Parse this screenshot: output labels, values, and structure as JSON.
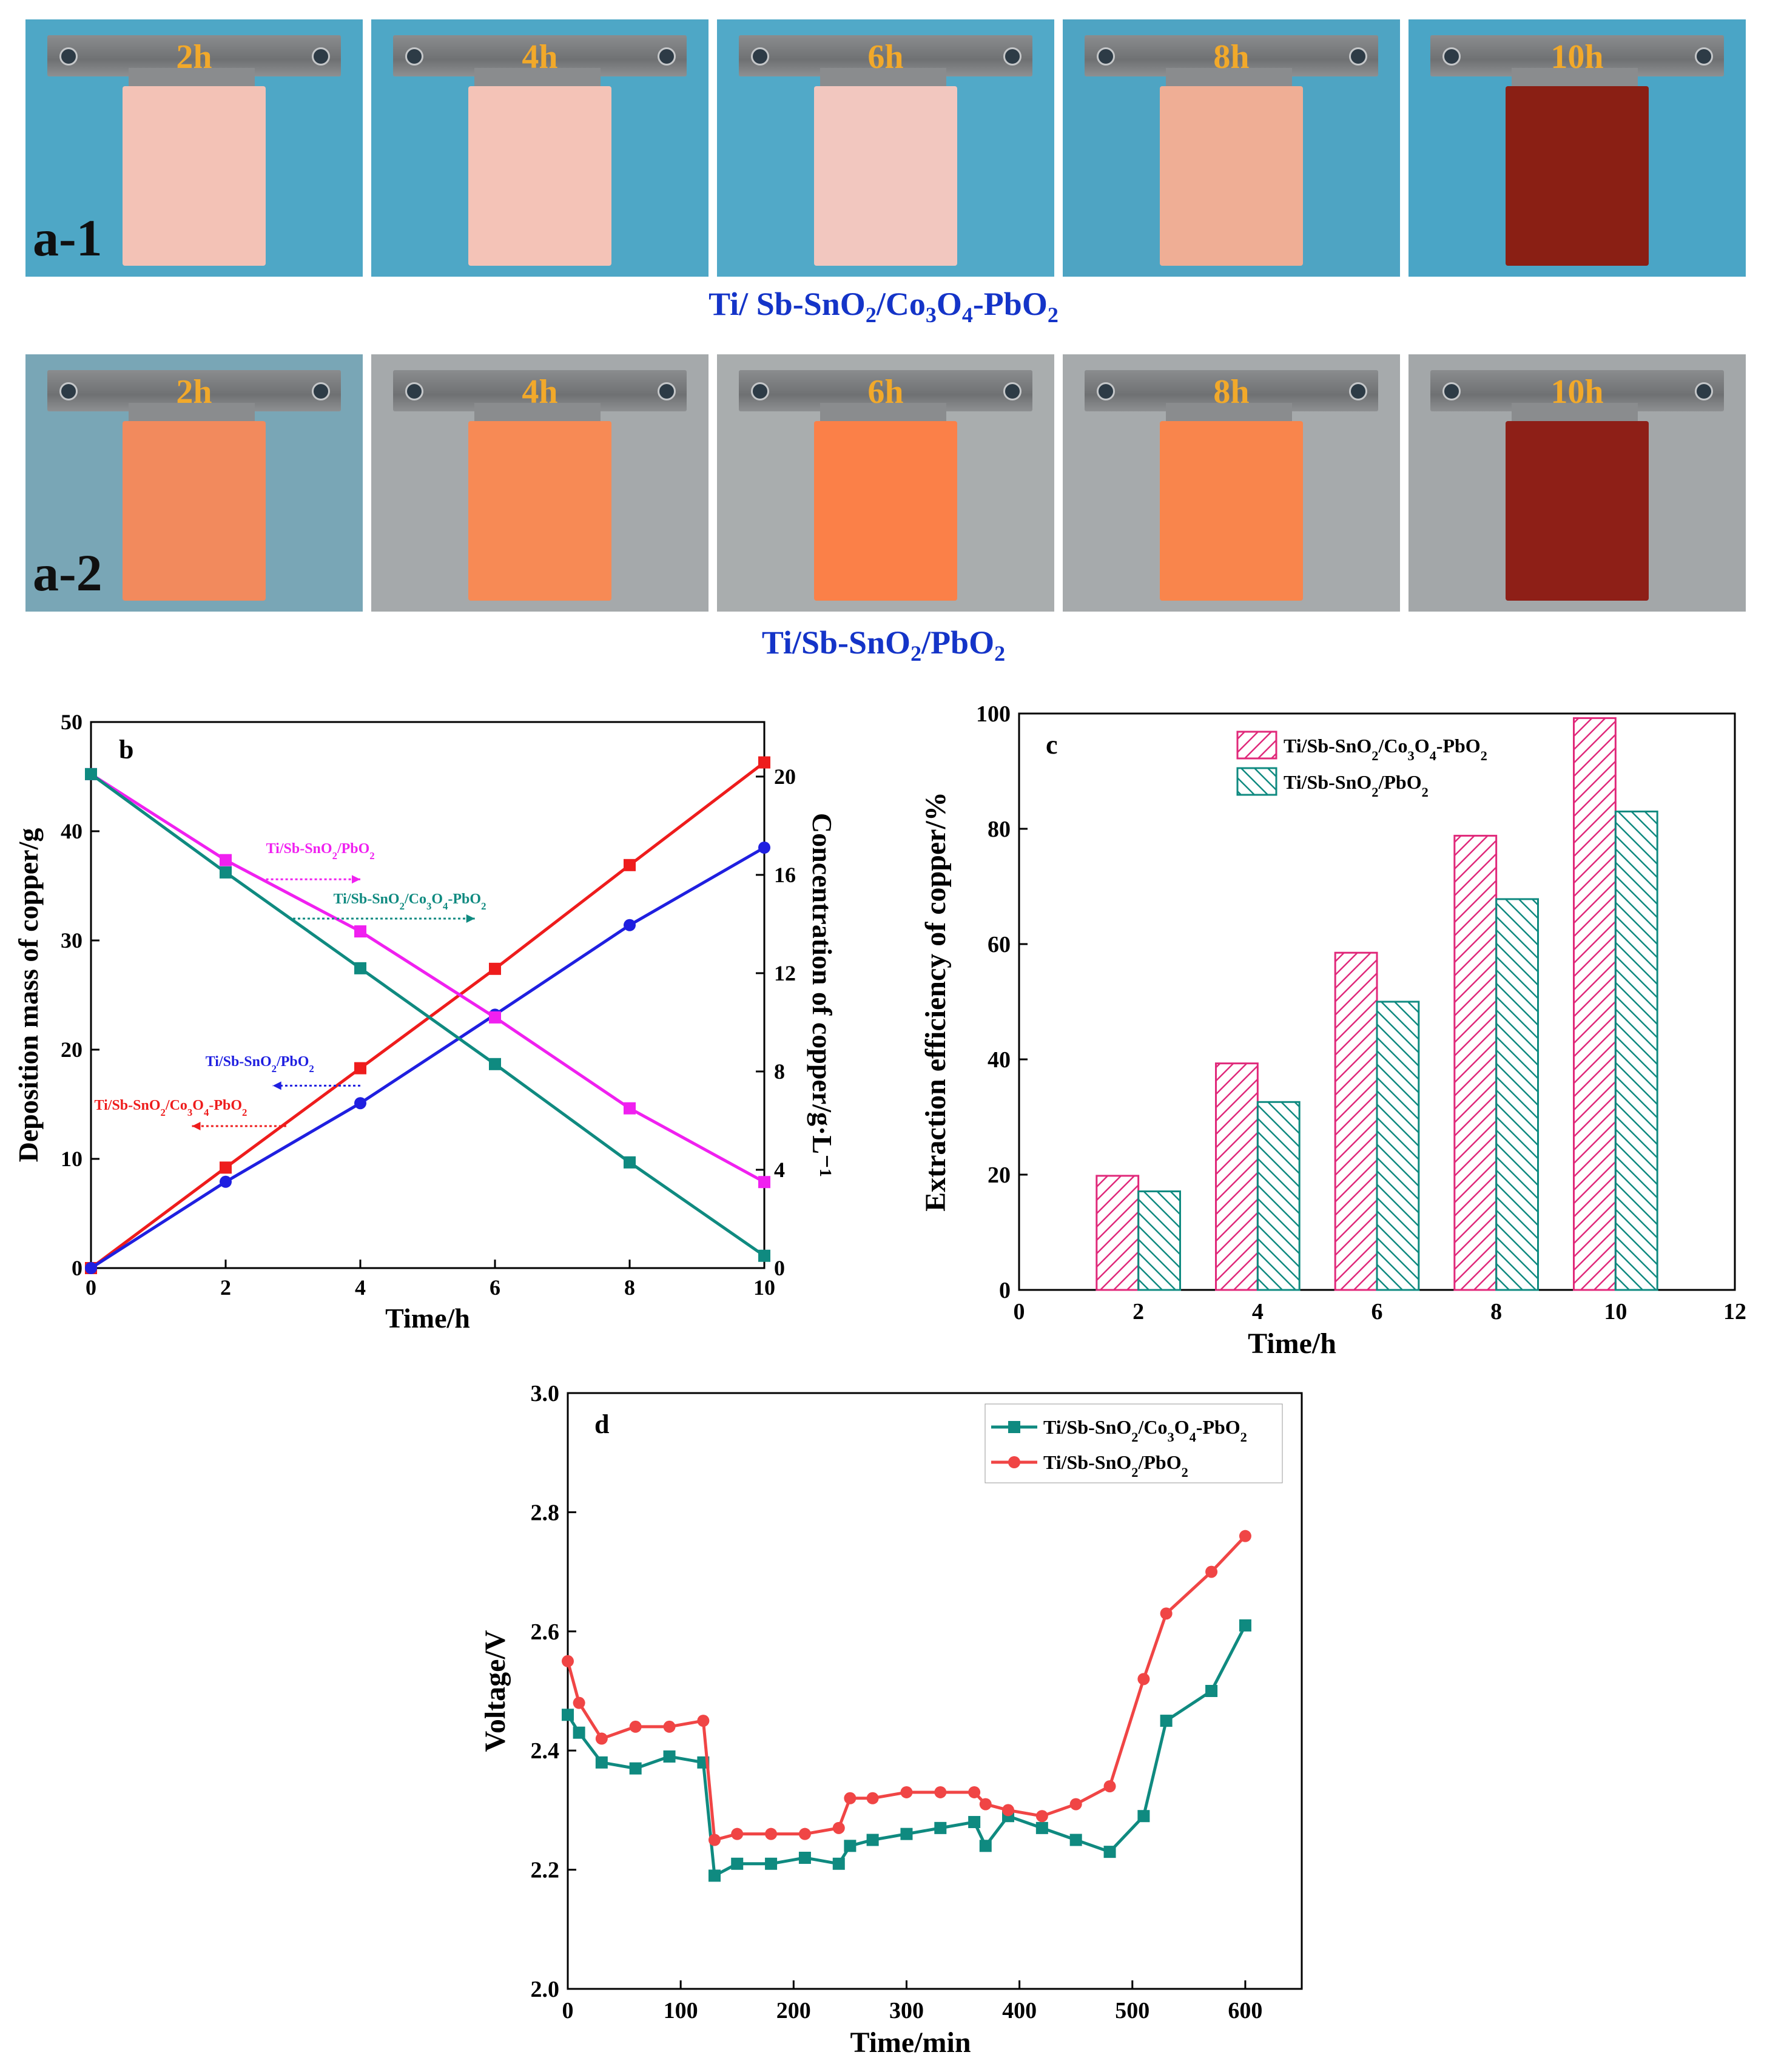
{
  "photos_row1": {
    "panel_label": "a-1",
    "caption_parts": [
      "Ti/ Sb-SnO",
      "2",
      "/Co",
      "3",
      "O",
      "4",
      "-PbO",
      "2"
    ],
    "items": [
      {
        "time": "2h",
        "bg": "#4ea7c6",
        "plate": "#f3c2b6"
      },
      {
        "time": "4h",
        "bg": "#4ea7c6",
        "plate": "#f4c3b7"
      },
      {
        "time": "6h",
        "bg": "#51a9c8",
        "plate": "#f2c7bf"
      },
      {
        "time": "8h",
        "bg": "#4ea4c3",
        "plate": "#efae95"
      },
      {
        "time": "10h",
        "bg": "#4aa5c6",
        "plate": "#8a1f14"
      }
    ]
  },
  "photos_row2": {
    "panel_label": "a-2",
    "caption_parts": [
      "Ti/Sb-SnO",
      "2",
      "/PbO",
      "2"
    ],
    "items": [
      {
        "time": "2h",
        "bg": "#79a6b6",
        "plate": "#f28a5d"
      },
      {
        "time": "4h",
        "bg": "#a5a9ab",
        "plate": "#f78a55"
      },
      {
        "time": "6h",
        "bg": "#a9adae",
        "plate": "#fb8048"
      },
      {
        "time": "8h",
        "bg": "#a6aaac",
        "plate": "#f9854c"
      },
      {
        "time": "10h",
        "bg": "#a3a7a9",
        "plate": "#8e1f17"
      }
    ]
  },
  "chart_data": [
    {
      "id": "b",
      "type": "line",
      "panel_label": "b",
      "xlabel": "Time/h",
      "ylabel": "Deposition mass of copper/g",
      "y2label": "Concentration of copper/g·L⁻¹",
      "xlim": [
        0,
        10
      ],
      "ylim": [
        0,
        50
      ],
      "y2lim": [
        0,
        22.22
      ],
      "xticks": [
        "0",
        "2",
        "4",
        "6",
        "8",
        "10"
      ],
      "yticks": [
        "0",
        "10",
        "20",
        "30",
        "40",
        "50"
      ],
      "y2ticks": [
        "0",
        "4",
        "8",
        "12",
        "16",
        "20"
      ],
      "series": [
        {
          "name": "Ti/Sb-SnO2/Co3O4-PbO2 (mass)",
          "axis": "left",
          "color": "#ee1c1c",
          "marker": "square",
          "x": [
            0,
            2,
            4,
            6,
            8,
            10
          ],
          "values": [
            0,
            9.2,
            18.3,
            27.4,
            36.9,
            46.3
          ]
        },
        {
          "name": "Ti/Sb-SnO2/PbO2 (mass)",
          "axis": "left",
          "color": "#1f1fe0",
          "marker": "circle",
          "x": [
            0,
            2,
            4,
            6,
            8,
            10
          ],
          "values": [
            0,
            7.9,
            15.1,
            23.2,
            31.4,
            38.5
          ]
        },
        {
          "name": "Ti/Sb-SnO2/PbO2 (concentration)",
          "axis": "right",
          "color": "#f020f0",
          "marker": "square",
          "x": [
            0,
            2,
            4,
            6,
            8,
            10
          ],
          "values": [
            20.1,
            16.6,
            13.7,
            10.2,
            6.5,
            3.5
          ]
        },
        {
          "name": "Ti/Sb-SnO2/Co3O4-PbO2 (concentration)",
          "axis": "right",
          "color": "#0f8a80",
          "marker": "square",
          "x": [
            0,
            2,
            4,
            6,
            8,
            10
          ],
          "values": [
            20.1,
            16.1,
            12.2,
            8.3,
            4.3,
            0.5
          ]
        }
      ],
      "annotations": [
        {
          "text": "Ti/Sb-SnO2/PbO2",
          "parts": [
            "Ti/Sb-SnO",
            "2",
            "/PbO",
            "2"
          ],
          "color": "#f020f0",
          "x": 2.6,
          "y": 38.0,
          "arrow": "right",
          "ax1": 2.6,
          "ax2": 4.0,
          "ay": 35.6
        },
        {
          "text": "Ti/Sb-SnO2/Co3O4-PbO2",
          "parts": [
            "Ti/Sb-SnO",
            "2",
            "/Co",
            "3",
            "O",
            "4",
            "-PbO",
            "2"
          ],
          "color": "#0f8a80",
          "x": 3.6,
          "y": 33.4,
          "arrow": "right",
          "ax1": 3.0,
          "ax2": 5.7,
          "ay": 32.0
        },
        {
          "text": "Ti/Sb-SnO2/PbO2",
          "parts": [
            "Ti/Sb-SnO",
            "2",
            "/PbO",
            "2"
          ],
          "color": "#1f1fe0",
          "x": 1.7,
          "y": 18.5,
          "arrow": "left",
          "ax1": 4.0,
          "ax2": 2.7,
          "ay": 16.7
        },
        {
          "text": "Ti/Sb-SnO2/Co3O4-PbO2",
          "parts": [
            "Ti/Sb-SnO",
            "2",
            "/Co",
            "3",
            "O",
            "4",
            "-PbO",
            "2"
          ],
          "color": "#ee1c1c",
          "x": 0.05,
          "y": 14.5,
          "arrow": "left",
          "ax1": 2.9,
          "ax2": 1.5,
          "ay": 13.0
        }
      ]
    },
    {
      "id": "c",
      "type": "bar",
      "panel_label": "c",
      "xlabel": "Time/h",
      "ylabel": "Extraction efficiency of copper/%",
      "xlim": [
        0,
        12
      ],
      "ylim": [
        0,
        100
      ],
      "xticks": [
        "0",
        "2",
        "4",
        "6",
        "8",
        "10",
        "12"
      ],
      "yticks": [
        "0",
        "20",
        "40",
        "60",
        "80",
        "100"
      ],
      "categories": [
        2,
        4,
        6,
        8,
        10
      ],
      "series": [
        {
          "name": "Ti/Sb-SnO2/Co3O4-PbO2",
          "parts": [
            "Ti/Sb-SnO",
            "2",
            "/Co",
            "3",
            "O",
            "4",
            "-PbO",
            "2"
          ],
          "color": "#e0297a",
          "hatch": "forward",
          "values": [
            19.8,
            39.3,
            58.5,
            78.8,
            99.2
          ]
        },
        {
          "name": "Ti/Sb-SnO2/PbO2",
          "parts": [
            "Ti/Sb-SnO",
            "2",
            "/PbO",
            "2"
          ],
          "color": "#0f8a80",
          "hatch": "backward",
          "values": [
            17.1,
            32.6,
            50.0,
            67.8,
            83.0
          ]
        }
      ]
    },
    {
      "id": "d",
      "type": "line",
      "panel_label": "d",
      "xlabel": "Time/min",
      "ylabel": "Voltage/V",
      "xlim": [
        0,
        650
      ],
      "ylim": [
        2.0,
        3.0
      ],
      "xticks": [
        "0",
        "100",
        "200",
        "300",
        "400",
        "500",
        "600"
      ],
      "yticks": [
        "2.0",
        "2.2",
        "2.4",
        "2.6",
        "2.8",
        "3.0"
      ],
      "series": [
        {
          "name": "Ti/Sb-SnO2/Co3O4-PbO2",
          "parts": [
            "Ti/Sb-SnO",
            "2",
            "/Co",
            "3",
            "O",
            "4",
            "-PbO",
            "2"
          ],
          "color": "#0f8a80",
          "marker": "square",
          "x": [
            0,
            10,
            30,
            60,
            90,
            120,
            130,
            150,
            180,
            210,
            240,
            250,
            270,
            300,
            330,
            360,
            370,
            390,
            420,
            450,
            480,
            510,
            530,
            570,
            600
          ],
          "values": [
            2.46,
            2.43,
            2.38,
            2.37,
            2.39,
            2.38,
            2.19,
            2.21,
            2.21,
            2.22,
            2.21,
            2.24,
            2.25,
            2.26,
            2.27,
            2.28,
            2.24,
            2.29,
            2.27,
            2.25,
            2.23,
            2.29,
            2.45,
            2.5,
            2.61
          ]
        },
        {
          "name": "Ti/Sb-SnO2/PbO2",
          "parts": [
            "Ti/Sb-SnO",
            "2",
            "/PbO",
            "2"
          ],
          "color": "#f04545",
          "marker": "circle",
          "x": [
            0,
            10,
            30,
            60,
            90,
            120,
            130,
            150,
            180,
            210,
            240,
            250,
            270,
            300,
            330,
            360,
            370,
            390,
            420,
            450,
            480,
            510,
            530,
            570,
            600
          ],
          "values": [
            2.55,
            2.48,
            2.42,
            2.44,
            2.44,
            2.45,
            2.25,
            2.26,
            2.26,
            2.26,
            2.27,
            2.32,
            2.32,
            2.33,
            2.33,
            2.33,
            2.31,
            2.3,
            2.29,
            2.31,
            2.34,
            2.52,
            2.63,
            2.7,
            2.76
          ]
        }
      ]
    }
  ]
}
